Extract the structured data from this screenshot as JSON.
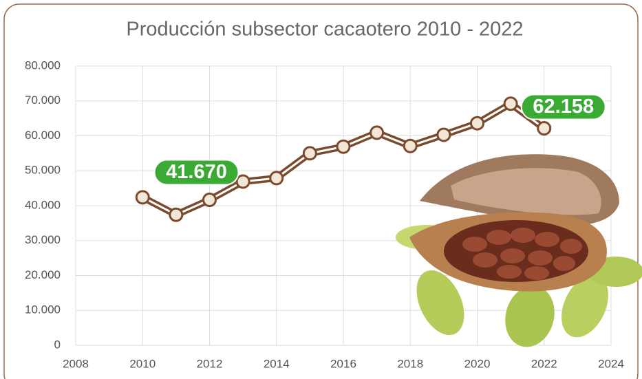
{
  "chart_data": {
    "type": "line",
    "title": "Producción subsector cacaotero 2010 - 2022",
    "x": [
      2010,
      2011,
      2012,
      2013,
      2014,
      2015,
      2016,
      2017,
      2018,
      2019,
      2020,
      2021,
      2022
    ],
    "series": [
      {
        "name": null,
        "color": "#7a4a2e",
        "values": [
          42400,
          37400,
          41670,
          46900,
          47900,
          55000,
          56900,
          60900,
          57100,
          60300,
          63600,
          69200,
          62158
        ],
        "value_labels": [
          null,
          null,
          "41.670",
          null,
          null,
          null,
          null,
          null,
          null,
          null,
          null,
          null,
          "62.158"
        ]
      }
    ],
    "xlim": [
      2008,
      2024
    ],
    "xticks": [
      2008,
      2010,
      2012,
      2014,
      2016,
      2018,
      2020,
      2022,
      2024
    ],
    "ylim": [
      0,
      80000
    ],
    "yticks": [
      0,
      {
        "value": 10000,
        "label": "10.000"
      },
      {
        "value": 20000,
        "label": "20.000"
      },
      {
        "value": 30000,
        "label": "30.000"
      },
      {
        "value": 40000,
        "label": "40.000"
      },
      {
        "value": 50000,
        "label": "50.000"
      },
      {
        "value": 60000,
        "label": "60.000"
      },
      {
        "value": 70000,
        "label": "70.000"
      },
      {
        "value": 80000,
        "label": "80.000"
      }
    ],
    "grid": true
  }
}
